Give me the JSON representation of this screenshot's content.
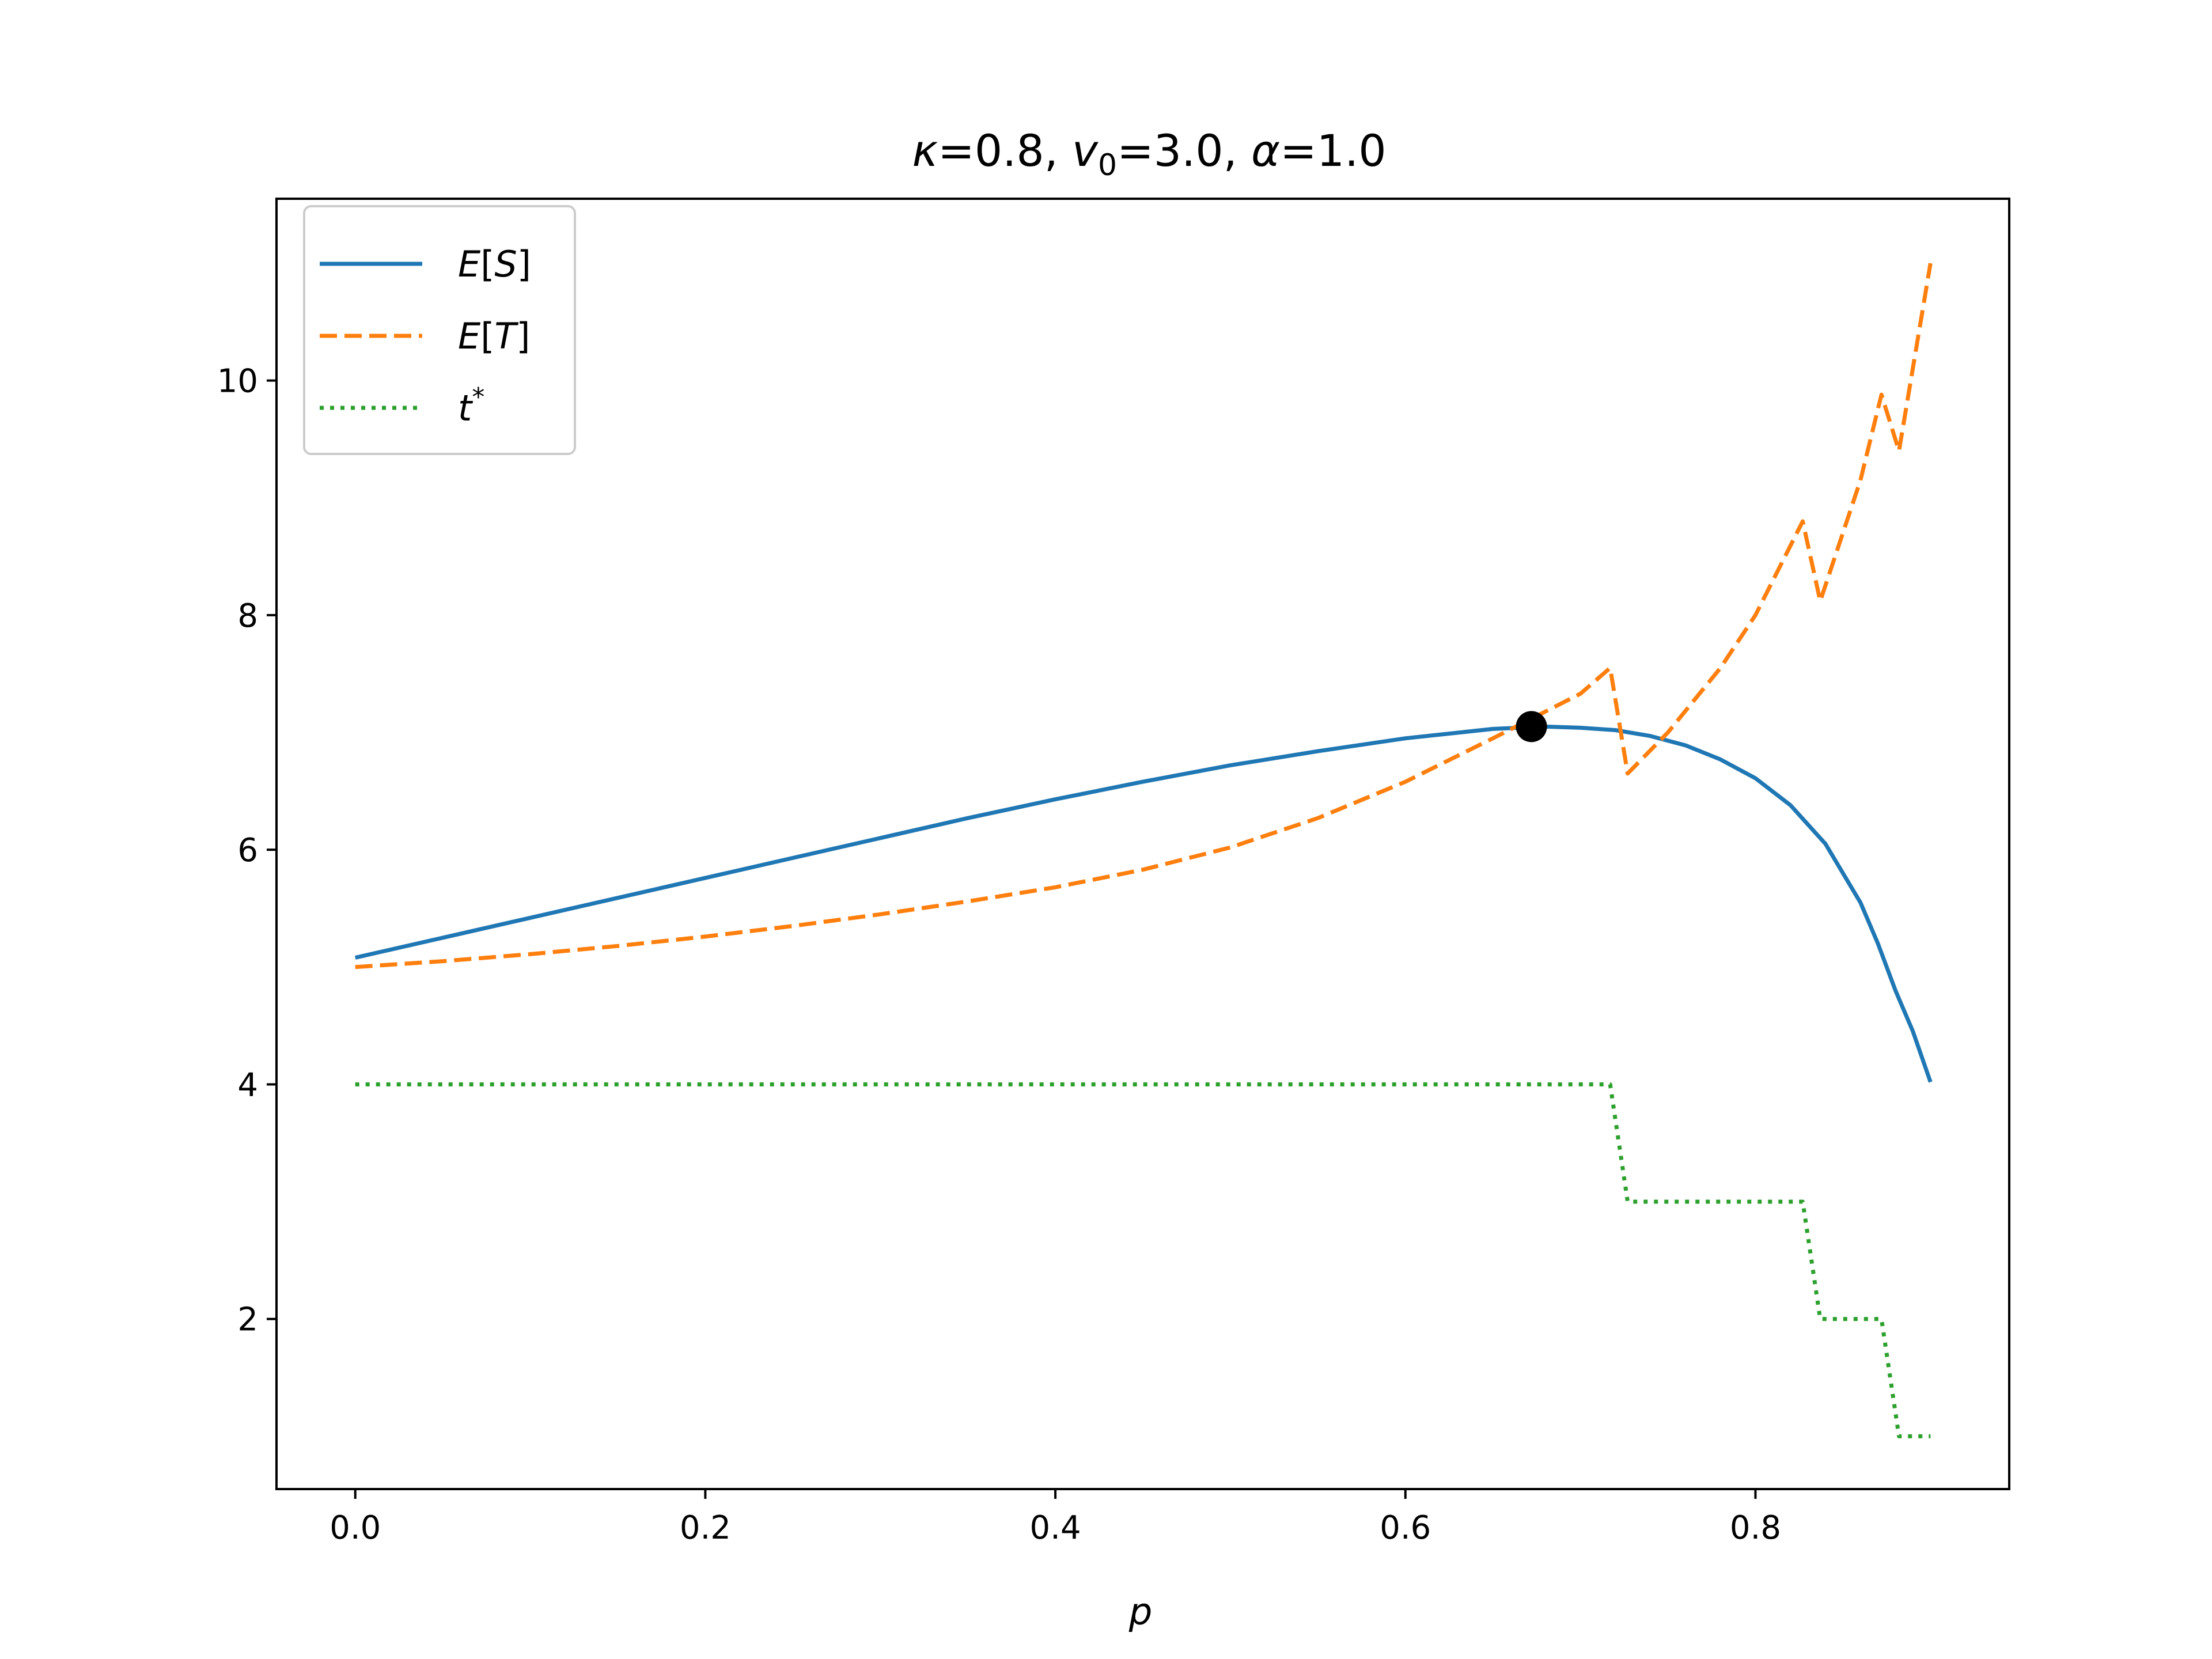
{
  "chart_data": {
    "type": "line",
    "title": {
      "kappa": "κ",
      "kappa_val": "=0.8, ",
      "v": "v",
      "v_sub": "0",
      "v_val": "=3.0, ",
      "alpha": "α",
      "alpha_val": "=1.0"
    },
    "xlabel": "p",
    "ylabel": "",
    "xlim": [
      -0.045,
      0.945
    ],
    "ylim": [
      0.55,
      11.55
    ],
    "x_ticks": [
      0.0,
      0.2,
      0.4,
      0.6,
      0.8
    ],
    "x_tick_labels": [
      "0.0",
      "0.2",
      "0.4",
      "0.6",
      "0.8"
    ],
    "y_ticks": [
      2,
      4,
      6,
      8,
      10
    ],
    "y_tick_labels": [
      "2",
      "4",
      "6",
      "8",
      "10"
    ],
    "grid": false,
    "legend_position": "top-left",
    "series": [
      {
        "name": "E[S]",
        "legend": {
          "base": "E",
          "open": "[",
          "var": "S",
          "close": "]"
        },
        "color": "#1f77b4",
        "style": "solid",
        "x": [
          0.0,
          0.05,
          0.1,
          0.15,
          0.2,
          0.25,
          0.3,
          0.35,
          0.4,
          0.45,
          0.5,
          0.55,
          0.6,
          0.65,
          0.68,
          0.7,
          0.72,
          0.74,
          0.76,
          0.78,
          0.8,
          0.82,
          0.84,
          0.86,
          0.87,
          0.88,
          0.89,
          0.9
        ],
        "y": [
          5.08,
          5.25,
          5.42,
          5.59,
          5.76,
          5.93,
          6.1,
          6.27,
          6.43,
          6.58,
          6.72,
          6.84,
          6.95,
          7.03,
          7.05,
          7.04,
          7.02,
          6.97,
          6.89,
          6.77,
          6.61,
          6.38,
          6.05,
          5.55,
          5.2,
          4.8,
          4.45,
          4.02
        ]
      },
      {
        "name": "E[T]",
        "legend": {
          "base": "E",
          "open": "[",
          "var": "T",
          "close": "]"
        },
        "color": "#ff7f0e",
        "style": "dashed",
        "x": [
          0.0,
          0.05,
          0.1,
          0.15,
          0.2,
          0.25,
          0.3,
          0.35,
          0.4,
          0.45,
          0.5,
          0.55,
          0.6,
          0.65,
          0.7,
          0.717,
          0.727,
          0.75,
          0.78,
          0.8,
          0.827,
          0.837,
          0.86,
          0.872,
          0.882,
          0.9
        ],
        "y": [
          5.0,
          5.05,
          5.11,
          5.18,
          5.26,
          5.35,
          5.45,
          5.56,
          5.68,
          5.83,
          6.02,
          6.27,
          6.58,
          6.95,
          7.33,
          7.55,
          6.65,
          7.0,
          7.55,
          8.0,
          8.8,
          8.12,
          9.15,
          9.88,
          9.4,
          11.0
        ]
      },
      {
        "name": "t*",
        "legend": {
          "base": "t",
          "sup": "*"
        },
        "color": "#2ca02c",
        "style": "dotted",
        "x": [
          0.0,
          0.717,
          0.727,
          0.827,
          0.837,
          0.872,
          0.882,
          0.9
        ],
        "y": [
          4,
          4,
          3,
          3,
          2,
          2,
          1,
          1
        ]
      }
    ],
    "highlight_point": {
      "x": 0.672,
      "y": 7.05,
      "color": "#000000"
    }
  }
}
